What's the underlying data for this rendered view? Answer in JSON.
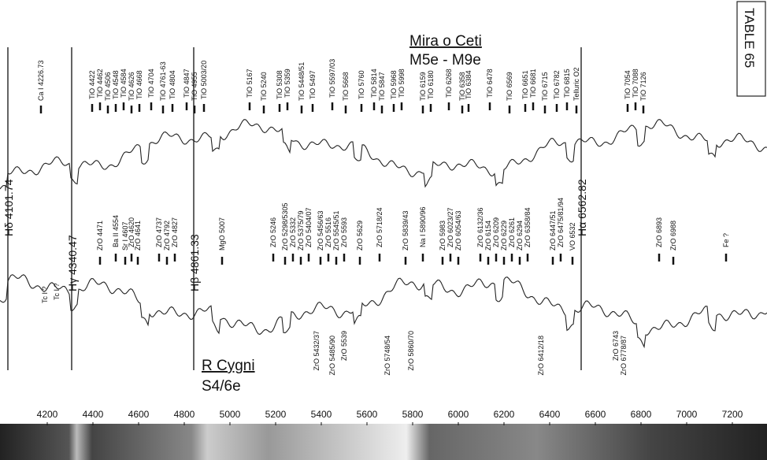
{
  "plate": "TABLE 65",
  "mira": {
    "name": "Mira o Ceti",
    "class": "M5e - M9e",
    "lines": [
      "Ca I 4226.73",
      "TiO 4422",
      "TiO 4462",
      "TiO 4506",
      "TiO 4548",
      "TiO 4584",
      "TiO 4626",
      "TiO 4668",
      "TiO 4704",
      "TiO 4761-63",
      "TiO 4804",
      "TiO 4847",
      "TiO 4955",
      "TiO 5003/20",
      "TiO 5167",
      "TiO 5240",
      "TiO 5308",
      "TiO 5359",
      "TiO 5448/51",
      "TiO 5497",
      "TiO 5597/03",
      "TiO 5668",
      "TiO 5760",
      "TiO 5814",
      "TiO 5847",
      "TiO 5968",
      "TiO 5998",
      "TiO 6159",
      "TiO 6180",
      "TiO 6268",
      "TiO 6358",
      "TiO 6384",
      "TiO 6478",
      "TiO 6569",
      "TiO 6651",
      "TiO 6681",
      "TiO 6715",
      "TiO 6782",
      "TiO 6815",
      "Telluric O2",
      "TiO 7054",
      "TiO 7088",
      "TiO 7126"
    ]
  },
  "rcyg": {
    "name": "R Cygni",
    "class": "S4/6e",
    "lines_above": [
      "Tc I ?",
      "Tc I ?",
      "ZrO 4471",
      "Ba II 4554",
      "Sr I 4607",
      "ZrO 4620",
      "ZrO 4641",
      "ZrO 4737",
      "ZrO 4792",
      "ZrO 4827",
      "MgO 5007",
      "ZrO 5246",
      "ZrO 5298/5305",
      "ZrO 5332",
      "ZrO 5375/79",
      "ZrO 5404/07",
      "ZrO 5456/63",
      "ZrO 5516",
      "ZrO 5545/51",
      "ZrO 5593",
      "ZrO 5629",
      "ZrO 5718/24",
      "ZrO 5839/43",
      "Na I 5890/96",
      "ZrO 5983",
      "ZrO 6023/27",
      "ZrO 6054/63",
      "ZrO 6132/36",
      "ZrO 6154",
      "ZrO 6209",
      "ZrO 6229",
      "ZrO 6261",
      "ZrO 6294",
      "ZrO 6358/84",
      "ZrO 6447/51",
      "ZrO 6475/81/94",
      "VO 6532",
      "ZrO 6893",
      "ZrO 6988",
      "Fe ?"
    ],
    "lines_below": [
      "ZrO 5432/37",
      "ZrO 5485/90",
      "ZrO 5539",
      "ZrO 5748/54",
      "ZrO 5860/70",
      "ZrO 6412/18",
      "ZrO 6743",
      "ZrO 6778/87"
    ]
  },
  "balmer": [
    "Hδ 4101.74",
    "Hγ 4340.47",
    "Hβ 4861.33",
    "Hα 6562.82"
  ],
  "wavelength_ticks": [
    4200,
    4400,
    4600,
    4800,
    5000,
    5200,
    5400,
    5600,
    5800,
    6000,
    6200,
    6400,
    6600,
    6800,
    7000,
    7200
  ]
}
